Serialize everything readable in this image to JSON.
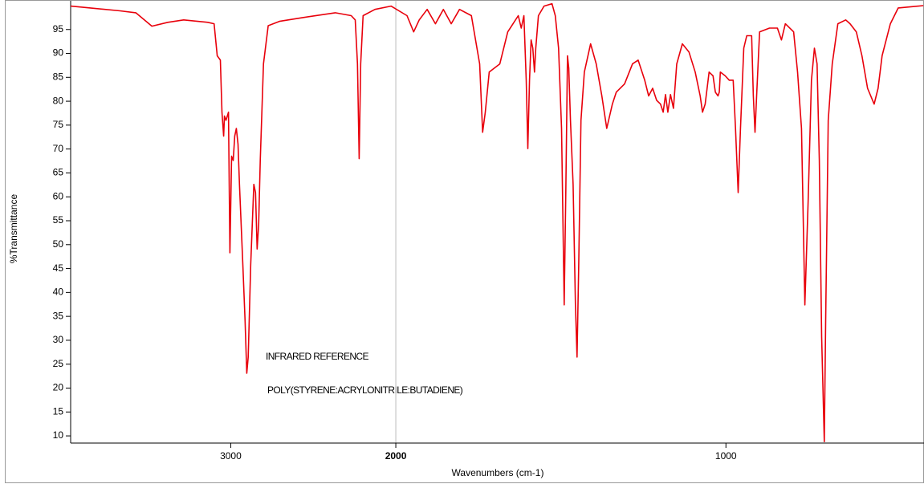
{
  "chart_data": {
    "type": "line",
    "xlabel": "Wavenumbers (cm-1)",
    "ylabel": "%Transmittance",
    "annotations": [
      "INFRARED REFERENCE",
      "POLY(STYRENE:ACRYLONITRILE:BUTADIENE)"
    ],
    "color": "#e8000b",
    "x": [
      3970,
      3671,
      3575,
      3478,
      3381,
      3285,
      3140,
      3101,
      3082,
      3063,
      3053,
      3043,
      3038,
      3029,
      3014,
      3005,
      2995,
      2985,
      2976,
      2966,
      2956,
      2947,
      2927,
      2913,
      2903,
      2894,
      2879,
      2860,
      2850,
      2840,
      2831,
      2821,
      2802,
      2773,
      2705,
      2560,
      2367,
      2270,
      2246,
      2232,
      2222,
      2213,
      2198,
      2126,
      2029,
      1966,
      1946,
      1929,
      1905,
      1880,
      1856,
      1832,
      1807,
      1771,
      1746,
      1737,
      1729,
      1717,
      1685,
      1661,
      1629,
      1620,
      1612,
      1605,
      1600,
      1595,
      1590,
      1585,
      1580,
      1576,
      1568,
      1551,
      1527,
      1517,
      1507,
      1498,
      1490,
      1485,
      1480,
      1476,
      1471,
      1463,
      1456,
      1451,
      1446,
      1439,
      1429,
      1410,
      1393,
      1376,
      1361,
      1344,
      1332,
      1307,
      1283,
      1266,
      1246,
      1234,
      1222,
      1210,
      1198,
      1190,
      1183,
      1176,
      1168,
      1159,
      1149,
      1132,
      1112,
      1093,
      1078,
      1071,
      1063,
      1051,
      1039,
      1032,
      1024,
      1020,
      1017,
      1002,
      990,
      978,
      971,
      963,
      956,
      946,
      937,
      922,
      917,
      912,
      907,
      898,
      868,
      844,
      832,
      820,
      795,
      783,
      771,
      761,
      751,
      741,
      732,
      724,
      717,
      710,
      702,
      698,
      690,
      678,
      661,
      637,
      624,
      605,
      588,
      571,
      551,
      539,
      527,
      502,
      478,
      402
    ],
    "values": [
      99.9,
      98.9,
      98.5,
      95.7,
      96.5,
      97.0,
      96.5,
      96.2,
      89.5,
      88.6,
      77.7,
      72.7,
      76.9,
      76.0,
      77.7,
      48.3,
      68.5,
      67.6,
      72.7,
      74.3,
      71.0,
      62.6,
      45.8,
      34.0,
      23.1,
      26.5,
      45.8,
      62.6,
      60.9,
      49.1,
      54.2,
      67.6,
      87.8,
      95.8,
      96.7,
      97.5,
      98.5,
      97.9,
      97.0,
      87.8,
      68.0,
      87.8,
      97.9,
      99.2,
      99.9,
      97.9,
      94.5,
      97.0,
      99.2,
      96.2,
      99.2,
      96.2,
      99.2,
      97.9,
      87.8,
      73.5,
      77.7,
      86.1,
      87.8,
      94.5,
      97.9,
      95.3,
      97.9,
      84.4,
      70.1,
      84.4,
      92.8,
      91.1,
      86.1,
      91.1,
      97.9,
      99.9,
      100.4,
      97.9,
      91.1,
      74.3,
      37.4,
      60.9,
      89.5,
      86.9,
      76.0,
      62.6,
      37.4,
      26.5,
      45.8,
      76.0,
      86.1,
      92.0,
      87.8,
      81.1,
      74.3,
      79.4,
      81.9,
      83.6,
      87.8,
      88.6,
      84.4,
      81.1,
      82.7,
      80.2,
      79.4,
      77.7,
      81.4,
      77.7,
      81.4,
      78.5,
      87.8,
      92.0,
      90.3,
      86.1,
      81.1,
      77.7,
      79.4,
      86.1,
      85.3,
      81.9,
      81.1,
      81.9,
      86.1,
      85.3,
      84.4,
      84.4,
      74.3,
      60.9,
      74.3,
      91.1,
      93.7,
      93.7,
      81.1,
      73.5,
      81.1,
      94.5,
      95.3,
      95.3,
      92.8,
      96.2,
      94.5,
      86.1,
      74.3,
      37.4,
      59.2,
      84.4,
      91.1,
      87.8,
      67.6,
      30.7,
      8.8,
      34.0,
      76.0,
      87.8,
      96.2,
      97.0,
      96.2,
      94.5,
      89.5,
      82.7,
      79.4,
      82.7,
      89.5,
      96.2,
      99.5,
      100.0
    ],
    "xlim": [
      3970,
      400
    ],
    "xticks": [
      3000,
      2000,
      1000
    ],
    "x_scale": {
      "break": 2000,
      "expansion_below": 2
    },
    "ylim": [
      8.5,
      101
    ],
    "yticks": [
      10,
      15,
      20,
      25,
      30,
      35,
      40,
      45,
      50,
      55,
      60,
      65,
      70,
      75,
      80,
      85,
      90,
      95
    ]
  }
}
